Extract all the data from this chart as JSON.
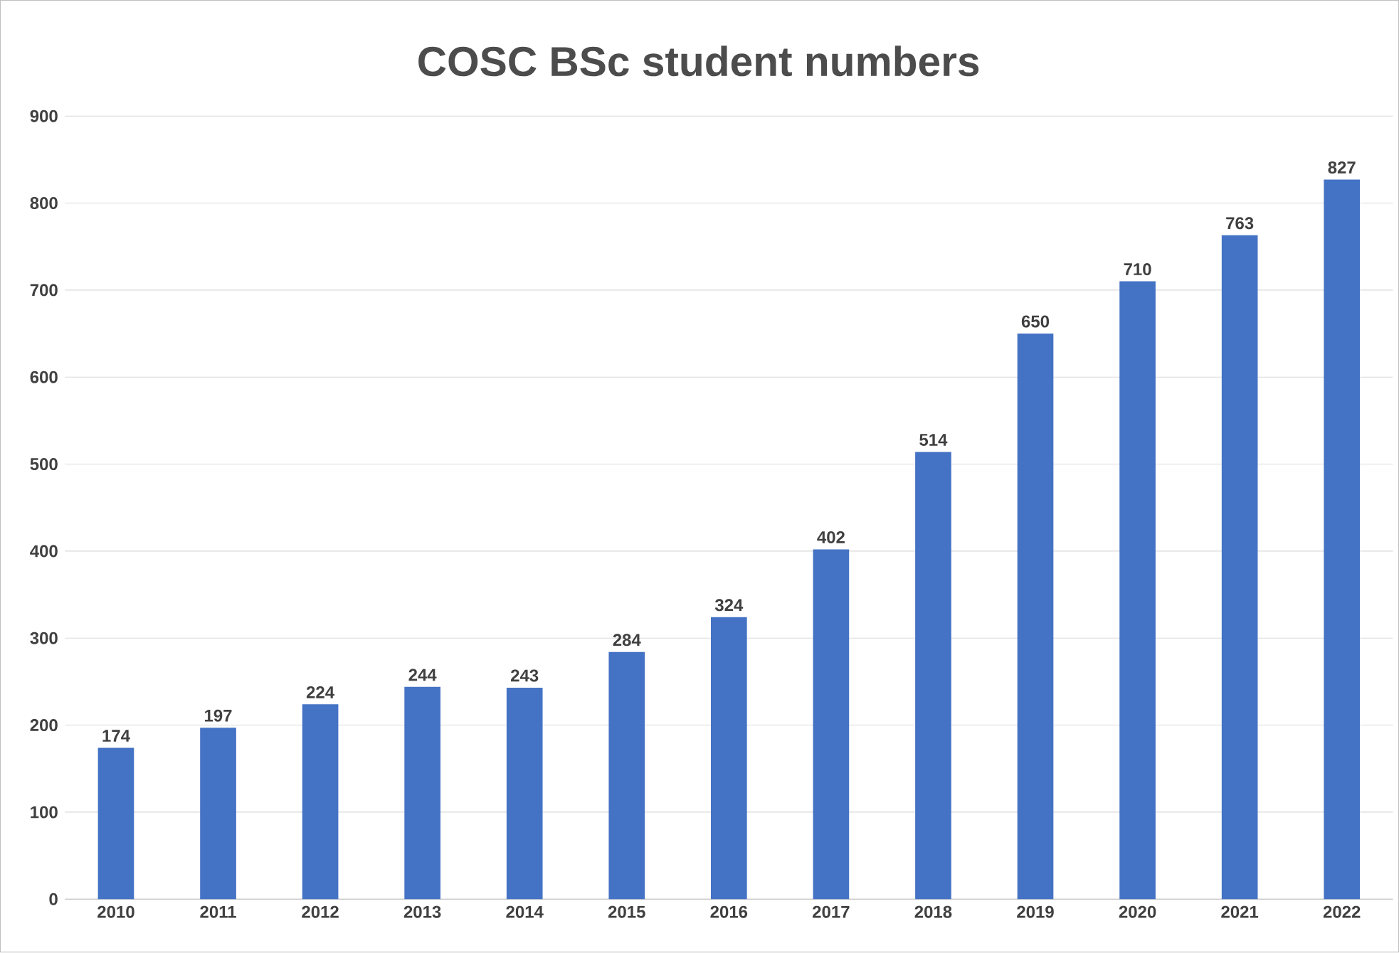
{
  "chart_data": {
    "type": "bar",
    "title": "COSC BSc student numbers",
    "categories": [
      "2010",
      "2011",
      "2012",
      "2013",
      "2014",
      "2015",
      "2016",
      "2017",
      "2018",
      "2019",
      "2020",
      "2021",
      "2022"
    ],
    "values": [
      174,
      197,
      224,
      244,
      243,
      284,
      324,
      402,
      514,
      650,
      710,
      763,
      827
    ],
    "color": "#4472c4",
    "ylim": [
      0,
      900
    ],
    "yticks": [
      0,
      100,
      200,
      300,
      400,
      500,
      600,
      700,
      800,
      900
    ],
    "grid": "y",
    "data_labels": true
  }
}
